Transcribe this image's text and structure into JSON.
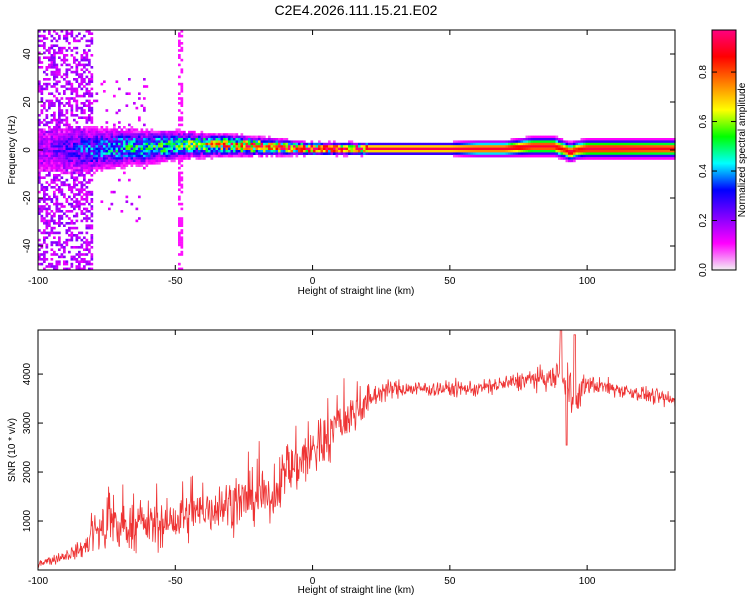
{
  "title": "C2E4.2026.111.15.21.E02",
  "chart_data": [
    {
      "type": "heatmap",
      "xlabel": "Height of straight line (km)",
      "ylabel": "Frequency (Hz)",
      "xlim": [
        -100,
        132
      ],
      "ylim": [
        -50,
        50
      ],
      "xticks": [
        -100,
        -50,
        0,
        50,
        100
      ],
      "yticks": [
        -40,
        -20,
        0,
        20,
        40
      ],
      "colorbar": {
        "label": "Normalized spectral amplitude",
        "range": [
          0,
          0.97
        ],
        "ticks": [
          0.0,
          0.2,
          0.4,
          0.6,
          0.8
        ],
        "colormap": [
          "#f2f2f2",
          "#ff00ff",
          "#8000ff",
          "#0000ff",
          "#00ffff",
          "#00ff00",
          "#ffff00",
          "#ff8000",
          "#ff0000",
          "#ff0080"
        ]
      },
      "band_profile": {
        "x": [
          -100,
          -90,
          -80,
          -70,
          -60,
          -50,
          -40,
          -30,
          -20,
          -10,
          0,
          10,
          20,
          30,
          40,
          50,
          60,
          70,
          80,
          88,
          92,
          94,
          96,
          100,
          110,
          120,
          132
        ],
        "center_hz": [
          0,
          0,
          0,
          1,
          1,
          2,
          2,
          2,
          1.5,
          1,
          0.5,
          0.5,
          0.5,
          0.5,
          0.5,
          0.5,
          0.5,
          0.5,
          1.5,
          1.5,
          0,
          -1,
          0,
          0.5,
          0.5,
          0.5,
          0.5
        ],
        "half_width_hz": [
          10,
          9,
          8,
          7,
          6,
          5,
          4,
          3.5,
          3,
          2.5,
          2,
          2,
          2,
          2,
          2,
          2,
          2.5,
          2.5,
          3,
          3,
          3,
          3,
          3,
          3,
          3,
          3,
          3
        ],
        "peak_amplitude": [
          0.15,
          0.25,
          0.35,
          0.4,
          0.45,
          0.5,
          0.6,
          0.7,
          0.8,
          0.85,
          0.9,
          0.9,
          0.92,
          0.92,
          0.92,
          0.92,
          0.9,
          0.9,
          0.9,
          0.9,
          0.85,
          0.95,
          0.85,
          0.92,
          0.92,
          0.9,
          0.88
        ]
      }
    },
    {
      "type": "line",
      "xlabel": "Height of straight line (km)",
      "ylabel": "SNR (10 * v/v)",
      "xlim": [
        -100,
        132
      ],
      "ylim": [
        0,
        4900
      ],
      "xticks": [
        -100,
        -50,
        0,
        50,
        100
      ],
      "yticks": [
        1000,
        2000,
        3000,
        4000
      ],
      "color": "#ee3333",
      "envelope": {
        "x": [
          -100,
          -95,
          -90,
          -85,
          -82,
          -80,
          -75,
          -70,
          -65,
          -60,
          -55,
          -50,
          -45,
          -40,
          -35,
          -30,
          -25,
          -20,
          -17,
          -15,
          -10,
          -5,
          0,
          5,
          10,
          15,
          20,
          25,
          30,
          40,
          50,
          60,
          70,
          80,
          88,
          90,
          92,
          94,
          96,
          98,
          100,
          110,
          120,
          132
        ],
        "mean": [
          150,
          200,
          300,
          400,
          500,
          800,
          850,
          850,
          900,
          950,
          900,
          1000,
          1100,
          1200,
          1300,
          1350,
          1400,
          1500,
          1450,
          1400,
          2000,
          2200,
          2400,
          2700,
          3000,
          3200,
          3450,
          3650,
          3700,
          3700,
          3700,
          3700,
          3800,
          3900,
          3900,
          4100,
          3700,
          3900,
          3300,
          3700,
          3800,
          3700,
          3600,
          3450
        ],
        "spread": [
          100,
          120,
          150,
          200,
          300,
          500,
          550,
          550,
          550,
          550,
          550,
          600,
          600,
          600,
          600,
          650,
          650,
          650,
          500,
          400,
          700,
          800,
          800,
          700,
          600,
          500,
          400,
          250,
          220,
          200,
          200,
          200,
          220,
          250,
          300,
          500,
          400,
          600,
          500,
          300,
          250,
          200,
          200,
          200
        ],
        "peak_max": 4900,
        "dip_min": 2550
      }
    }
  ]
}
